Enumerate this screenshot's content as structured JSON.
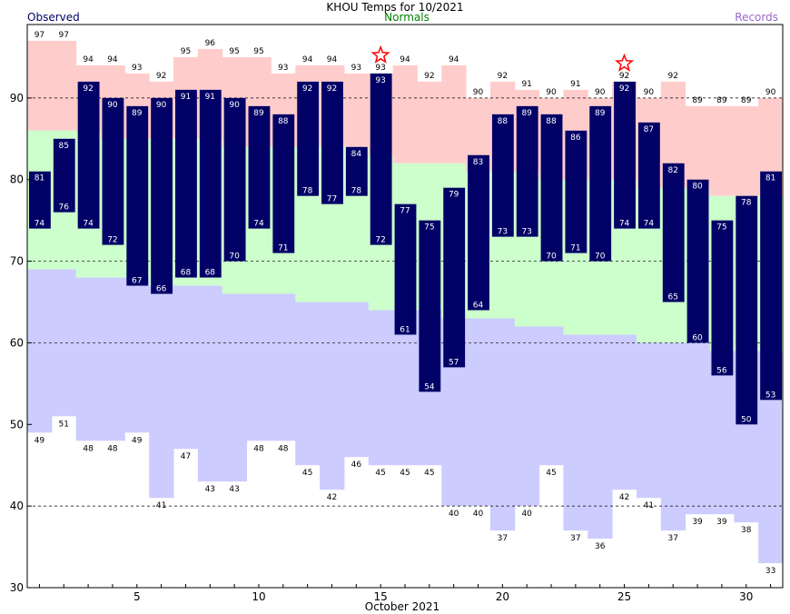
{
  "header": {
    "title": "KHOU Temps for 10/2021",
    "observed_label": "Observed",
    "normals_label": "Normals",
    "records_label": "Records"
  },
  "colors": {
    "observed": "#000066",
    "normals_band": "#ccffcc",
    "record_high_band": "#ffcccc",
    "record_low_band": "#ccccff",
    "normals_text": "#008000",
    "records_text": "#9966cc",
    "record_star": "#ff0000",
    "grid": "#000000"
  },
  "chart_data": {
    "type": "bar",
    "title": "KHOU Temps for 10/2021",
    "xlabel": "October 2021",
    "ylabel": "",
    "ylim": [
      30,
      99
    ],
    "yticks": [
      30,
      40,
      50,
      60,
      70,
      80,
      90
    ],
    "xticks": [
      5,
      10,
      15,
      20,
      25,
      30
    ],
    "grid": "dashed horizontal at 40, 60, 70, 90",
    "legend": "top: Observed (left), Normals (center), Records (right)",
    "days": [
      1,
      2,
      3,
      4,
      5,
      6,
      7,
      8,
      9,
      10,
      11,
      12,
      13,
      14,
      15,
      16,
      17,
      18,
      19,
      20,
      21,
      22,
      23,
      24,
      25,
      26,
      27,
      28,
      29,
      30,
      31
    ],
    "series": [
      {
        "name": "Observed High",
        "values": [
          81,
          85,
          92,
          90,
          89,
          90,
          91,
          91,
          90,
          89,
          88,
          92,
          92,
          84,
          93,
          77,
          75,
          79,
          83,
          88,
          89,
          88,
          86,
          89,
          92,
          87,
          82,
          80,
          75,
          78,
          81
        ]
      },
      {
        "name": "Observed Low",
        "values": [
          74,
          76,
          74,
          72,
          67,
          66,
          68,
          68,
          70,
          74,
          71,
          78,
          77,
          78,
          72,
          61,
          54,
          57,
          64,
          73,
          73,
          70,
          71,
          70,
          74,
          74,
          65,
          60,
          56,
          50,
          53
        ]
      },
      {
        "name": "Normal High",
        "values": [
          86,
          86,
          86,
          85,
          85,
          85,
          85,
          85,
          84,
          84,
          84,
          84,
          84,
          84,
          83,
          82,
          82,
          82,
          81,
          81,
          81,
          80,
          80,
          80,
          80,
          79,
          79,
          79,
          78,
          78,
          78
        ]
      },
      {
        "name": "Normal Low",
        "values": [
          69,
          69,
          68,
          68,
          68,
          67,
          67,
          67,
          66,
          66,
          66,
          65,
          65,
          65,
          64,
          64,
          64,
          63,
          63,
          63,
          62,
          62,
          61,
          61,
          61,
          60,
          60,
          60,
          59,
          59,
          59
        ]
      },
      {
        "name": "Record High",
        "values": [
          97,
          97,
          94,
          94,
          93,
          92,
          95,
          96,
          95,
          95,
          93,
          94,
          94,
          93,
          93,
          94,
          92,
          94,
          90,
          92,
          91,
          90,
          91,
          90,
          92,
          90,
          92,
          89,
          89,
          89,
          90
        ]
      },
      {
        "name": "Record Low",
        "values": [
          49,
          51,
          48,
          48,
          49,
          41,
          47,
          43,
          43,
          48,
          48,
          45,
          42,
          46,
          45,
          45,
          45,
          40,
          40,
          37,
          40,
          45,
          37,
          36,
          42,
          41,
          37,
          39,
          39,
          38,
          33
        ]
      }
    ],
    "record_set_days": [
      15,
      25
    ]
  }
}
